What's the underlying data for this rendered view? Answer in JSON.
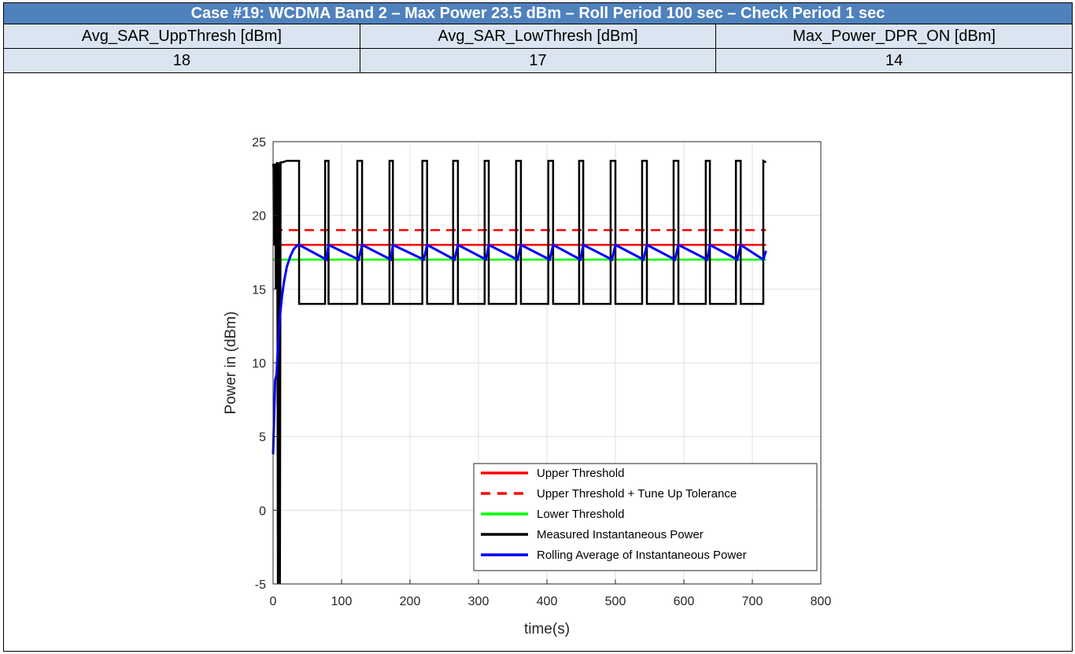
{
  "header": {
    "title": "Case #19: WCDMA Band 2 – Max Power 23.5 dBm – Roll Period 100 sec – Check Period 1 sec",
    "columns": [
      "Avg_SAR_UppThresh [dBm]",
      "Avg_SAR_LowThresh [dBm]",
      "Max_Power_DPR_ON [dBm]"
    ],
    "values": [
      "18",
      "17",
      "14"
    ]
  },
  "colors": {
    "header_bg": "#4f81bd",
    "cell_bg": "#dbe5f1",
    "upper_threshold": "#ff0000",
    "lower_threshold": "#00ff00",
    "measured": "#000000",
    "rolling_average": "#0000ff"
  },
  "chart_data": {
    "type": "line",
    "xlabel": "time(s)",
    "ylabel": "Power in (dBm)",
    "xlim": [
      0,
      800
    ],
    "ylim": [
      -5,
      25
    ],
    "xticks": [
      0,
      100,
      200,
      300,
      400,
      500,
      600,
      700,
      800
    ],
    "yticks": [
      -5,
      0,
      5,
      10,
      15,
      20,
      25
    ],
    "grid": true,
    "legend_position": "bottom-right",
    "series": [
      {
        "name": "Upper Threshold",
        "style": "solid",
        "color": "#ff0000",
        "x": [
          0,
          720
        ],
        "y": [
          18,
          18
        ]
      },
      {
        "name": "Upper Threshold + Tune Up Tolerance",
        "style": "dashed",
        "color": "#ff0000",
        "x": [
          0,
          720
        ],
        "y": [
          19,
          19
        ]
      },
      {
        "name": "Lower Threshold",
        "style": "solid",
        "color": "#00ff00",
        "x": [
          0,
          720
        ],
        "y": [
          17,
          17
        ]
      },
      {
        "name": "Measured Instantaneous Power",
        "style": "solid",
        "color": "#000000",
        "x": [
          0,
          0.5,
          1,
          2,
          3,
          4,
          5,
          6,
          7,
          8,
          9,
          10,
          11,
          12,
          14,
          20,
          30,
          38,
          38,
          76,
          76,
          81,
          81,
          123,
          123,
          130,
          130,
          170,
          170,
          175,
          175,
          218,
          218,
          225,
          225,
          263,
          263,
          270,
          270,
          309,
          309,
          315,
          315,
          355,
          355,
          362,
          362,
          402,
          402,
          409,
          409,
          447,
          447,
          453,
          453,
          493,
          493,
          500,
          500,
          539,
          539,
          546,
          546,
          585,
          585,
          592,
          592,
          632,
          632,
          638,
          638,
          676,
          676,
          683,
          683,
          716,
          716,
          720
        ],
        "y": [
          23.5,
          23.2,
          18,
          23.4,
          23.5,
          15,
          23.5,
          23.6,
          -5,
          23.6,
          14,
          -5,
          23.6,
          23.6,
          23.6,
          23.7,
          23.7,
          23.7,
          14,
          14,
          23.7,
          23.7,
          14,
          14,
          23.7,
          23.7,
          14,
          14,
          23.7,
          23.7,
          14,
          14,
          23.7,
          23.7,
          14,
          14,
          23.7,
          23.7,
          14,
          14,
          23.7,
          23.7,
          14,
          14,
          23.7,
          23.7,
          14,
          14,
          23.7,
          23.7,
          14,
          14,
          23.7,
          23.7,
          14,
          14,
          23.7,
          23.7,
          14,
          14,
          23.7,
          23.7,
          14,
          14,
          23.7,
          23.7,
          14,
          14,
          23.7,
          23.7,
          14,
          14,
          23.7,
          23.7,
          14,
          14,
          23.7,
          23.6
        ]
      },
      {
        "name": "Rolling Average of Instantaneous Power",
        "style": "solid",
        "color": "#0000ff",
        "x": [
          0,
          1,
          3,
          5,
          7,
          9,
          11,
          13,
          16,
          20,
          25,
          30,
          35,
          38,
          78,
          81,
          125,
          130,
          172,
          175,
          220,
          225,
          265,
          270,
          311,
          315,
          357,
          362,
          404,
          409,
          449,
          453,
          495,
          500,
          541,
          546,
          587,
          592,
          634,
          638,
          678,
          683,
          716,
          720
        ],
        "y": [
          3.8,
          5.5,
          8.8,
          9.2,
          11,
          12.5,
          13.6,
          14.5,
          15.5,
          16.5,
          17.2,
          17.7,
          17.95,
          18,
          17,
          18,
          17,
          18,
          17,
          18,
          17,
          18,
          17,
          18,
          17,
          18,
          17,
          18,
          17,
          18,
          17,
          18,
          17,
          18,
          17,
          18,
          17,
          18,
          17,
          18,
          17,
          18,
          17,
          17.6
        ]
      }
    ]
  }
}
